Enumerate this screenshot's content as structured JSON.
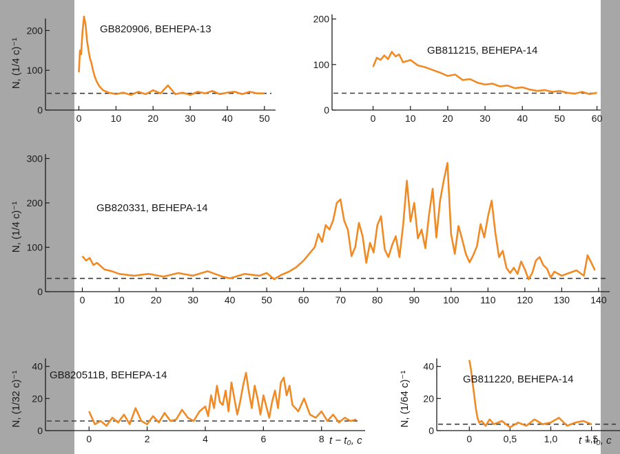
{
  "colors": {
    "trace": "#f08a24",
    "baseline": "#3a3a3a",
    "axis": "#1a1a1a",
    "side_panel": "#a7a7a7"
  },
  "xaxis_label": "t − t₀, c",
  "chart_data": [
    {
      "id": "gb820906",
      "type": "line",
      "title": "GB820906, ВЕНЕРА-13",
      "ylabel": "N, (1/4 c)⁻¹",
      "xticks": [
        0,
        10,
        20,
        30,
        40,
        50
      ],
      "yticks": [
        0,
        100,
        200
      ],
      "xlim": [
        -9,
        53
      ],
      "ylim": [
        0,
        230
      ],
      "background": 42,
      "x": [
        0,
        0.3,
        0.6,
        1,
        1.4,
        1.8,
        2.2,
        2.6,
        3,
        3.4,
        3.8,
        4.3,
        4.8,
        5.5,
        6.5,
        8,
        10,
        12,
        14,
        16,
        18,
        20,
        22,
        24,
        26,
        28,
        30,
        32,
        34,
        36,
        38,
        40,
        42,
        44,
        46,
        48,
        50
      ],
      "y": [
        95,
        150,
        140,
        200,
        235,
        215,
        175,
        150,
        130,
        118,
        100,
        84,
        72,
        60,
        50,
        44,
        40,
        44,
        38,
        46,
        40,
        50,
        42,
        62,
        40,
        44,
        38,
        46,
        42,
        48,
        40,
        44,
        46,
        40,
        46,
        42,
        42
      ]
    },
    {
      "id": "gb811215",
      "type": "line",
      "title": "GB811215, ВЕНЕРА-14",
      "ylabel": "",
      "xticks": [
        0,
        10,
        20,
        30,
        40,
        50,
        60
      ],
      "yticks": [
        0,
        100,
        200
      ],
      "xlim": [
        -11,
        61
      ],
      "ylim": [
        0,
        210
      ],
      "background": 37,
      "x": [
        0,
        1,
        2,
        3,
        4,
        5,
        6,
        7,
        8,
        10,
        12,
        14,
        16,
        18,
        20,
        22,
        24,
        26,
        28,
        30,
        32,
        34,
        36,
        38,
        40,
        42,
        44,
        46,
        48,
        50,
        52,
        54,
        56,
        58,
        60
      ],
      "y": [
        95,
        115,
        110,
        120,
        112,
        128,
        118,
        122,
        105,
        110,
        98,
        94,
        88,
        82,
        75,
        78,
        66,
        68,
        60,
        56,
        58,
        52,
        54,
        48,
        50,
        45,
        42,
        44,
        40,
        42,
        38,
        36,
        40,
        35,
        38
      ]
    },
    {
      "id": "gb820331",
      "type": "line",
      "title": "GB820331, ВЕНЕРА-14",
      "ylabel": "N, (1/4 c)⁻¹",
      "xticks": [
        0,
        10,
        20,
        30,
        40,
        50,
        60,
        70,
        80,
        90,
        100,
        110,
        120,
        130,
        140
      ],
      "yticks": [
        0,
        100,
        200,
        300
      ],
      "xlim": [
        -10,
        143
      ],
      "ylim": [
        0,
        310
      ],
      "background": 30,
      "x": [
        0,
        1,
        2,
        3,
        4,
        6,
        8,
        10,
        14,
        18,
        22,
        26,
        30,
        34,
        38,
        40,
        44,
        48,
        50,
        52,
        54,
        56,
        58,
        60,
        62,
        63,
        64,
        65,
        66,
        67,
        68,
        69,
        70,
        71,
        72,
        73,
        74,
        75,
        76,
        77,
        78,
        79,
        80,
        81,
        82,
        83,
        84,
        85,
        86,
        87,
        88,
        89,
        90,
        91,
        92,
        93,
        94,
        95,
        96,
        97,
        98,
        99,
        100,
        101,
        102,
        103,
        104,
        105,
        106,
        107,
        108,
        109,
        110,
        111,
        112,
        113,
        114,
        115,
        116,
        117,
        118,
        119,
        120,
        121,
        122,
        123,
        124,
        125,
        126,
        127,
        128,
        130,
        132,
        134,
        136,
        137,
        138,
        139
      ],
      "y": [
        80,
        70,
        76,
        60,
        65,
        50,
        46,
        40,
        36,
        40,
        34,
        42,
        36,
        46,
        34,
        30,
        40,
        36,
        42,
        28,
        38,
        45,
        55,
        70,
        90,
        100,
        130,
        112,
        150,
        140,
        160,
        200,
        208,
        160,
        140,
        80,
        100,
        155,
        125,
        65,
        110,
        88,
        150,
        170,
        95,
        78,
        105,
        125,
        78,
        150,
        250,
        158,
        200,
        120,
        140,
        98,
        172,
        232,
        122,
        205,
        250,
        290,
        130,
        85,
        148,
        118,
        85,
        66,
        82,
        102,
        152,
        122,
        170,
        205,
        132,
        78,
        92,
        54,
        42,
        54,
        40,
        68,
        50,
        28,
        42,
        70,
        78,
        60,
        52,
        32,
        45,
        36,
        42,
        48,
        36,
        82,
        66,
        48
      ]
    },
    {
      "id": "gb820511b",
      "type": "line",
      "title": "GB820511B, ВЕНЕРА-14",
      "ylabel": "N, (1/32 c)⁻¹",
      "xticks": [
        0,
        2,
        4,
        6,
        8
      ],
      "yticks": [
        0,
        20,
        40
      ],
      "xlim": [
        -1.5,
        9.5
      ],
      "ylim": [
        0,
        45
      ],
      "background": 6,
      "x": [
        0,
        0.2,
        0.4,
        0.6,
        0.8,
        1,
        1.2,
        1.4,
        1.6,
        1.8,
        2,
        2.2,
        2.4,
        2.6,
        2.8,
        3,
        3.2,
        3.4,
        3.6,
        3.8,
        4,
        4.1,
        4.2,
        4.3,
        4.4,
        4.5,
        4.6,
        4.7,
        4.8,
        4.9,
        5,
        5.1,
        5.2,
        5.3,
        5.4,
        5.5,
        5.6,
        5.7,
        5.8,
        5.9,
        6,
        6.1,
        6.2,
        6.3,
        6.4,
        6.5,
        6.6,
        6.7,
        6.8,
        6.9,
        7,
        7.1,
        7.2,
        7.4,
        7.6,
        7.8,
        8,
        8.2,
        8.4,
        8.6,
        8.8,
        9,
        9.2
      ],
      "y": [
        12,
        4,
        6,
        3,
        8,
        5,
        10,
        4,
        14,
        6,
        4,
        9,
        5,
        11,
        6,
        7,
        13,
        8,
        6,
        12,
        15,
        9,
        22,
        14,
        28,
        18,
        16,
        25,
        12,
        30,
        20,
        10,
        18,
        28,
        36,
        24,
        14,
        28,
        20,
        10,
        22,
        15,
        8,
        18,
        25,
        14,
        30,
        33,
        22,
        28,
        16,
        14,
        12,
        20,
        10,
        8,
        12,
        6,
        10,
        5,
        8,
        6,
        7
      ]
    },
    {
      "id": "gb811220",
      "type": "line",
      "title": "GB811220, ВЕНЕРА-14",
      "ylabel": "N, (1/64 c)⁻¹",
      "xticks": [
        0,
        0.5,
        1.0,
        1.5
      ],
      "xtick_labels": [
        "0",
        "0,5",
        "1,0",
        "1,5"
      ],
      "yticks": [
        0,
        20,
        40
      ],
      "xlim": [
        -0.4,
        1.85
      ],
      "ylim": [
        0,
        45
      ],
      "background": 4,
      "x": [
        0,
        0.02,
        0.04,
        0.06,
        0.08,
        0.1,
        0.12,
        0.15,
        0.2,
        0.25,
        0.3,
        0.4,
        0.5,
        0.6,
        0.7,
        0.8,
        0.9,
        1,
        1.1,
        1.2,
        1.3,
        1.4,
        1.5
      ],
      "y": [
        44,
        38,
        30,
        22,
        14,
        8,
        5,
        6,
        3,
        7,
        4,
        6,
        2,
        5,
        3,
        7,
        4,
        5,
        8,
        3,
        5,
        6,
        4
      ]
    }
  ]
}
